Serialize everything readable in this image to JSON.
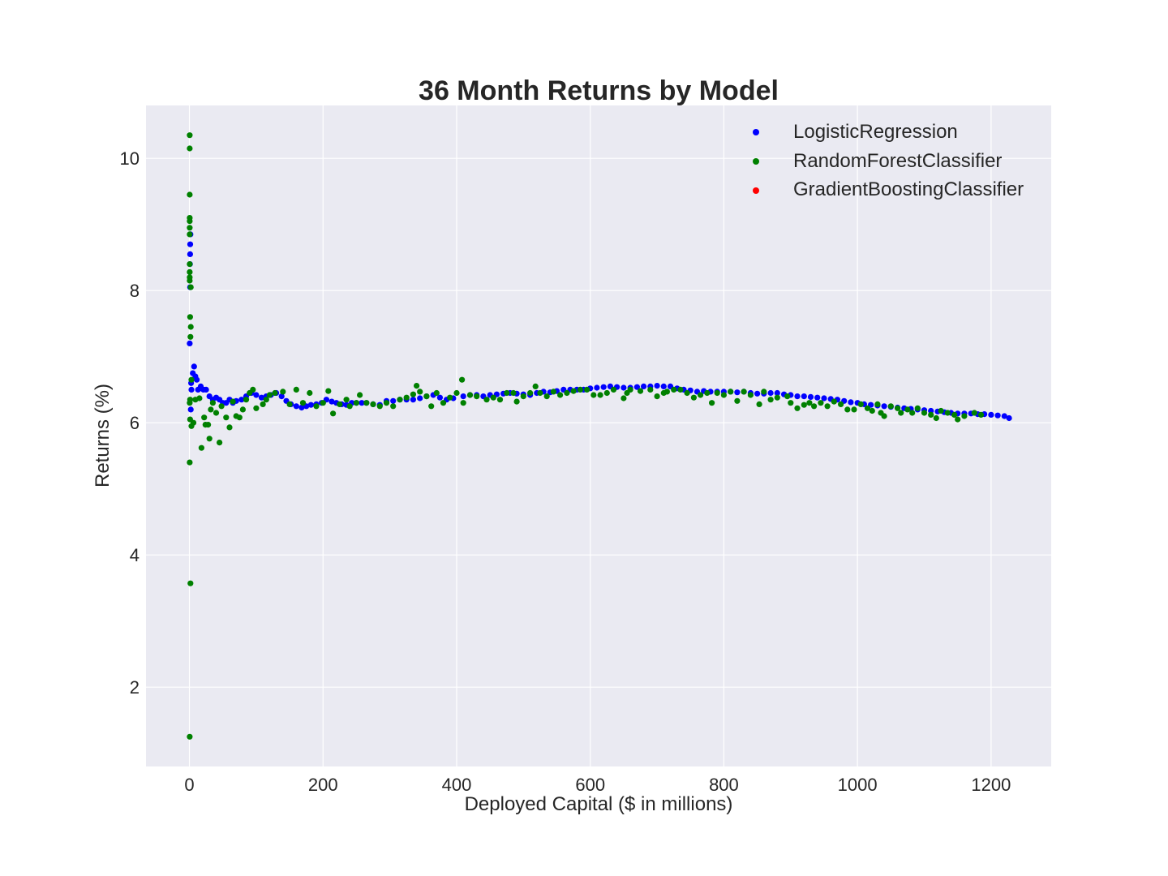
{
  "chart_data": {
    "type": "scatter",
    "title": "36 Month Returns by Model",
    "xlabel": "Deployed Capital ($ in millions)",
    "ylabel": "Returns (%)",
    "xlim": [
      -65,
      1290
    ],
    "ylim": [
      0.8,
      10.8
    ],
    "xticks": [
      0,
      200,
      400,
      600,
      800,
      1000,
      1200
    ],
    "yticks": [
      2,
      4,
      6,
      8,
      10
    ],
    "grid": true,
    "legend_position": "top-right",
    "colors": {
      "background": "#EAEAF2",
      "grid": "#FFFFFF"
    },
    "series": [
      {
        "name": "LogisticRegression",
        "color": "#0000FF",
        "points": [
          [
            0.5,
            7.2
          ],
          [
            1,
            8.55
          ],
          [
            1.2,
            8.7
          ],
          [
            1.5,
            8.85
          ],
          [
            0.8,
            8.4
          ],
          [
            1,
            8.05
          ],
          [
            2,
            6.2
          ],
          [
            2.5,
            6.6
          ],
          [
            3,
            6.5
          ],
          [
            5,
            6.75
          ],
          [
            7,
            6.85
          ],
          [
            9,
            6.7
          ],
          [
            11,
            6.65
          ],
          [
            13,
            6.5
          ],
          [
            17,
            6.55
          ],
          [
            21,
            6.5
          ],
          [
            25,
            6.5
          ],
          [
            30,
            6.4
          ],
          [
            35,
            6.35
          ],
          [
            40,
            6.38
          ],
          [
            45,
            6.35
          ],
          [
            50,
            6.3
          ],
          [
            55,
            6.3
          ],
          [
            60,
            6.35
          ],
          [
            65,
            6.3
          ],
          [
            70,
            6.33
          ],
          [
            78,
            6.35
          ],
          [
            85,
            6.4
          ],
          [
            93,
            6.45
          ],
          [
            100,
            6.42
          ],
          [
            108,
            6.38
          ],
          [
            115,
            6.4
          ],
          [
            122,
            6.42
          ],
          [
            130,
            6.45
          ],
          [
            138,
            6.4
          ],
          [
            145,
            6.33
          ],
          [
            152,
            6.28
          ],
          [
            160,
            6.25
          ],
          [
            168,
            6.23
          ],
          [
            175,
            6.25
          ],
          [
            182,
            6.27
          ],
          [
            190,
            6.28
          ],
          [
            198,
            6.3
          ],
          [
            205,
            6.35
          ],
          [
            213,
            6.32
          ],
          [
            220,
            6.3
          ],
          [
            228,
            6.28
          ],
          [
            235,
            6.27
          ],
          [
            243,
            6.3
          ],
          [
            250,
            6.3
          ],
          [
            258,
            6.3
          ],
          [
            265,
            6.3
          ],
          [
            275,
            6.28
          ],
          [
            285,
            6.27
          ],
          [
            295,
            6.33
          ],
          [
            305,
            6.33
          ],
          [
            315,
            6.35
          ],
          [
            325,
            6.35
          ],
          [
            335,
            6.35
          ],
          [
            345,
            6.37
          ],
          [
            355,
            6.4
          ],
          [
            365,
            6.42
          ],
          [
            375,
            6.38
          ],
          [
            385,
            6.35
          ],
          [
            395,
            6.37
          ],
          [
            410,
            6.4
          ],
          [
            420,
            6.42
          ],
          [
            430,
            6.42
          ],
          [
            440,
            6.4
          ],
          [
            450,
            6.42
          ],
          [
            460,
            6.43
          ],
          [
            470,
            6.44
          ],
          [
            480,
            6.45
          ],
          [
            490,
            6.44
          ],
          [
            500,
            6.43
          ],
          [
            510,
            6.42
          ],
          [
            520,
            6.45
          ],
          [
            530,
            6.47
          ],
          [
            540,
            6.46
          ],
          [
            550,
            6.48
          ],
          [
            560,
            6.5
          ],
          [
            570,
            6.5
          ],
          [
            580,
            6.5
          ],
          [
            590,
            6.5
          ],
          [
            600,
            6.52
          ],
          [
            610,
            6.53
          ],
          [
            620,
            6.54
          ],
          [
            630,
            6.55
          ],
          [
            640,
            6.54
          ],
          [
            650,
            6.53
          ],
          [
            660,
            6.53
          ],
          [
            670,
            6.54
          ],
          [
            680,
            6.55
          ],
          [
            690,
            6.55
          ],
          [
            700,
            6.56
          ],
          [
            710,
            6.55
          ],
          [
            720,
            6.55
          ],
          [
            730,
            6.52
          ],
          [
            740,
            6.5
          ],
          [
            750,
            6.49
          ],
          [
            760,
            6.47
          ],
          [
            770,
            6.48
          ],
          [
            780,
            6.47
          ],
          [
            790,
            6.47
          ],
          [
            800,
            6.47
          ],
          [
            810,
            6.47
          ],
          [
            820,
            6.46
          ],
          [
            830,
            6.47
          ],
          [
            840,
            6.45
          ],
          [
            850,
            6.44
          ],
          [
            860,
            6.44
          ],
          [
            870,
            6.45
          ],
          [
            880,
            6.45
          ],
          [
            890,
            6.43
          ],
          [
            900,
            6.42
          ],
          [
            910,
            6.4
          ],
          [
            920,
            6.4
          ],
          [
            930,
            6.39
          ],
          [
            940,
            6.38
          ],
          [
            950,
            6.37
          ],
          [
            960,
            6.36
          ],
          [
            970,
            6.35
          ],
          [
            980,
            6.33
          ],
          [
            990,
            6.31
          ],
          [
            1000,
            6.3
          ],
          [
            1010,
            6.28
          ],
          [
            1020,
            6.27
          ],
          [
            1030,
            6.26
          ],
          [
            1040,
            6.25
          ],
          [
            1050,
            6.24
          ],
          [
            1060,
            6.23
          ],
          [
            1070,
            6.22
          ],
          [
            1080,
            6.21
          ],
          [
            1090,
            6.2
          ],
          [
            1100,
            6.19
          ],
          [
            1110,
            6.18
          ],
          [
            1120,
            6.17
          ],
          [
            1130,
            6.16
          ],
          [
            1140,
            6.15
          ],
          [
            1150,
            6.14
          ],
          [
            1160,
            6.14
          ],
          [
            1170,
            6.14
          ],
          [
            1180,
            6.13
          ],
          [
            1190,
            6.13
          ],
          [
            1200,
            6.12
          ],
          [
            1210,
            6.11
          ],
          [
            1220,
            6.1
          ],
          [
            1227,
            6.07
          ]
        ]
      },
      {
        "name": "RandomForestClassifier",
        "color": "#008000",
        "points": [
          [
            0.5,
            10.35
          ],
          [
            0.5,
            10.15
          ],
          [
            0.5,
            9.45
          ],
          [
            0.5,
            9.1
          ],
          [
            0.5,
            9.05
          ],
          [
            0.5,
            8.95
          ],
          [
            0.5,
            8.85
          ],
          [
            0.5,
            8.4
          ],
          [
            0.5,
            8.28
          ],
          [
            0.5,
            8.2
          ],
          [
            0.5,
            8.15
          ],
          [
            1,
            7.6
          ],
          [
            1.5,
            7.3
          ],
          [
            2,
            7.45
          ],
          [
            2,
            8.05
          ],
          [
            0.5,
            6.3
          ],
          [
            1,
            6.35
          ],
          [
            1,
            6.05
          ],
          [
            0.5,
            5.4
          ],
          [
            1.5,
            3.57
          ],
          [
            0.5,
            1.25
          ],
          [
            3,
            6.65
          ],
          [
            3,
            5.95
          ],
          [
            6,
            6.0
          ],
          [
            9,
            6.35
          ],
          [
            15,
            6.37
          ],
          [
            18,
            5.62
          ],
          [
            22,
            6.08
          ],
          [
            24,
            5.97
          ],
          [
            28,
            5.97
          ],
          [
            30,
            5.76
          ],
          [
            32,
            6.2
          ],
          [
            35,
            6.3
          ],
          [
            40,
            6.15
          ],
          [
            45,
            5.7
          ],
          [
            48,
            6.25
          ],
          [
            55,
            6.08
          ],
          [
            60,
            5.93
          ],
          [
            65,
            6.32
          ],
          [
            70,
            6.1
          ],
          [
            75,
            6.08
          ],
          [
            80,
            6.2
          ],
          [
            85,
            6.35
          ],
          [
            90,
            6.45
          ],
          [
            95,
            6.5
          ],
          [
            100,
            6.22
          ],
          [
            110,
            6.28
          ],
          [
            115,
            6.35
          ],
          [
            120,
            6.42
          ],
          [
            128,
            6.45
          ],
          [
            140,
            6.47
          ],
          [
            150,
            6.28
          ],
          [
            160,
            6.5
          ],
          [
            170,
            6.3
          ],
          [
            180,
            6.45
          ],
          [
            190,
            6.25
          ],
          [
            200,
            6.3
          ],
          [
            208,
            6.48
          ],
          [
            215,
            6.14
          ],
          [
            225,
            6.28
          ],
          [
            235,
            6.35
          ],
          [
            240,
            6.25
          ],
          [
            250,
            6.3
          ],
          [
            255,
            6.42
          ],
          [
            265,
            6.3
          ],
          [
            275,
            6.28
          ],
          [
            285,
            6.25
          ],
          [
            295,
            6.3
          ],
          [
            305,
            6.25
          ],
          [
            315,
            6.35
          ],
          [
            325,
            6.38
          ],
          [
            335,
            6.43
          ],
          [
            340,
            6.56
          ],
          [
            345,
            6.47
          ],
          [
            355,
            6.4
          ],
          [
            362,
            6.25
          ],
          [
            370,
            6.45
          ],
          [
            380,
            6.3
          ],
          [
            390,
            6.38
          ],
          [
            400,
            6.45
          ],
          [
            408,
            6.65
          ],
          [
            410,
            6.3
          ],
          [
            420,
            6.42
          ],
          [
            430,
            6.4
          ],
          [
            445,
            6.35
          ],
          [
            455,
            6.38
          ],
          [
            465,
            6.35
          ],
          [
            475,
            6.45
          ],
          [
            485,
            6.45
          ],
          [
            490,
            6.32
          ],
          [
            500,
            6.4
          ],
          [
            510,
            6.45
          ],
          [
            518,
            6.55
          ],
          [
            525,
            6.45
          ],
          [
            535,
            6.4
          ],
          [
            545,
            6.47
          ],
          [
            555,
            6.42
          ],
          [
            565,
            6.45
          ],
          [
            575,
            6.48
          ],
          [
            585,
            6.5
          ],
          [
            595,
            6.5
          ],
          [
            605,
            6.42
          ],
          [
            615,
            6.42
          ],
          [
            625,
            6.45
          ],
          [
            635,
            6.5
          ],
          [
            650,
            6.37
          ],
          [
            655,
            6.45
          ],
          [
            660,
            6.5
          ],
          [
            675,
            6.48
          ],
          [
            690,
            6.5
          ],
          [
            700,
            6.4
          ],
          [
            710,
            6.45
          ],
          [
            715,
            6.47
          ],
          [
            725,
            6.5
          ],
          [
            735,
            6.5
          ],
          [
            745,
            6.45
          ],
          [
            755,
            6.38
          ],
          [
            765,
            6.42
          ],
          [
            775,
            6.45
          ],
          [
            782,
            6.3
          ],
          [
            790,
            6.45
          ],
          [
            800,
            6.42
          ],
          [
            810,
            6.47
          ],
          [
            820,
            6.33
          ],
          [
            830,
            6.47
          ],
          [
            840,
            6.42
          ],
          [
            853,
            6.28
          ],
          [
            860,
            6.47
          ],
          [
            870,
            6.35
          ],
          [
            880,
            6.38
          ],
          [
            895,
            6.4
          ],
          [
            900,
            6.3
          ],
          [
            910,
            6.22
          ],
          [
            920,
            6.27
          ],
          [
            928,
            6.3
          ],
          [
            935,
            6.25
          ],
          [
            945,
            6.3
          ],
          [
            955,
            6.25
          ],
          [
            965,
            6.32
          ],
          [
            975,
            6.28
          ],
          [
            985,
            6.2
          ],
          [
            995,
            6.2
          ],
          [
            1005,
            6.28
          ],
          [
            1015,
            6.22
          ],
          [
            1022,
            6.18
          ],
          [
            1030,
            6.28
          ],
          [
            1035,
            6.15
          ],
          [
            1040,
            6.1
          ],
          [
            1050,
            6.25
          ],
          [
            1060,
            6.22
          ],
          [
            1065,
            6.15
          ],
          [
            1075,
            6.2
          ],
          [
            1082,
            6.15
          ],
          [
            1090,
            6.22
          ],
          [
            1100,
            6.15
          ],
          [
            1110,
            6.12
          ],
          [
            1118,
            6.07
          ],
          [
            1125,
            6.18
          ],
          [
            1135,
            6.15
          ],
          [
            1145,
            6.12
          ],
          [
            1150,
            6.05
          ],
          [
            1160,
            6.1
          ],
          [
            1175,
            6.15
          ],
          [
            1185,
            6.12
          ]
        ]
      },
      {
        "name": "GradientBoostingClassifier",
        "color": "#FF0000",
        "points": []
      }
    ]
  }
}
